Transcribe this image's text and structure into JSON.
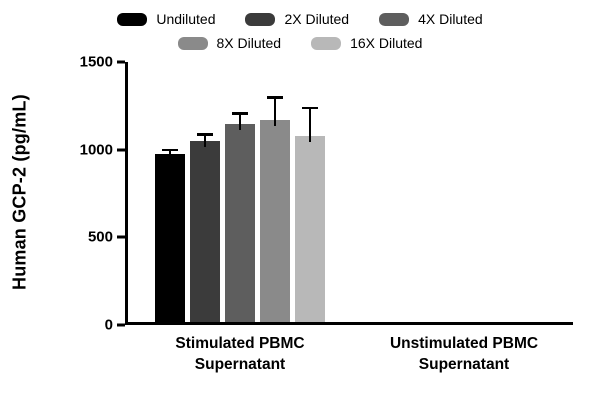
{
  "chart_data": {
    "type": "bar",
    "title": "",
    "ylabel": "Human GCP-2 (pg/mL)",
    "xlabel": "",
    "ylim": [
      0,
      1500
    ],
    "yticks": [
      0,
      500,
      1000,
      1500
    ],
    "grid": false,
    "legend_position": "top",
    "categories": [
      {
        "lines": [
          "Stimulated PBMC",
          "Supernatant"
        ]
      },
      {
        "lines": [
          "Unstimulated PBMC",
          "Supernatant"
        ]
      }
    ],
    "series": [
      {
        "name": "Undiluted",
        "color": "#000000",
        "values": [
          960,
          0
        ],
        "errors": [
          20,
          0
        ]
      },
      {
        "name": "2X Diluted",
        "color": "#3b3b3b",
        "values": [
          1030,
          0
        ],
        "errors": [
          40,
          0
        ]
      },
      {
        "name": "4X Diluted",
        "color": "#5e5e5e",
        "values": [
          1130,
          0
        ],
        "errors": [
          60,
          0
        ]
      },
      {
        "name": "8X Diluted",
        "color": "#8a8a8a",
        "values": [
          1150,
          0
        ],
        "errors": [
          130,
          0
        ]
      },
      {
        "name": "16X Diluted",
        "color": "#b8b8b8",
        "values": [
          1060,
          0
        ],
        "errors": [
          160,
          0
        ]
      }
    ],
    "error_bar_color": "#000000"
  }
}
